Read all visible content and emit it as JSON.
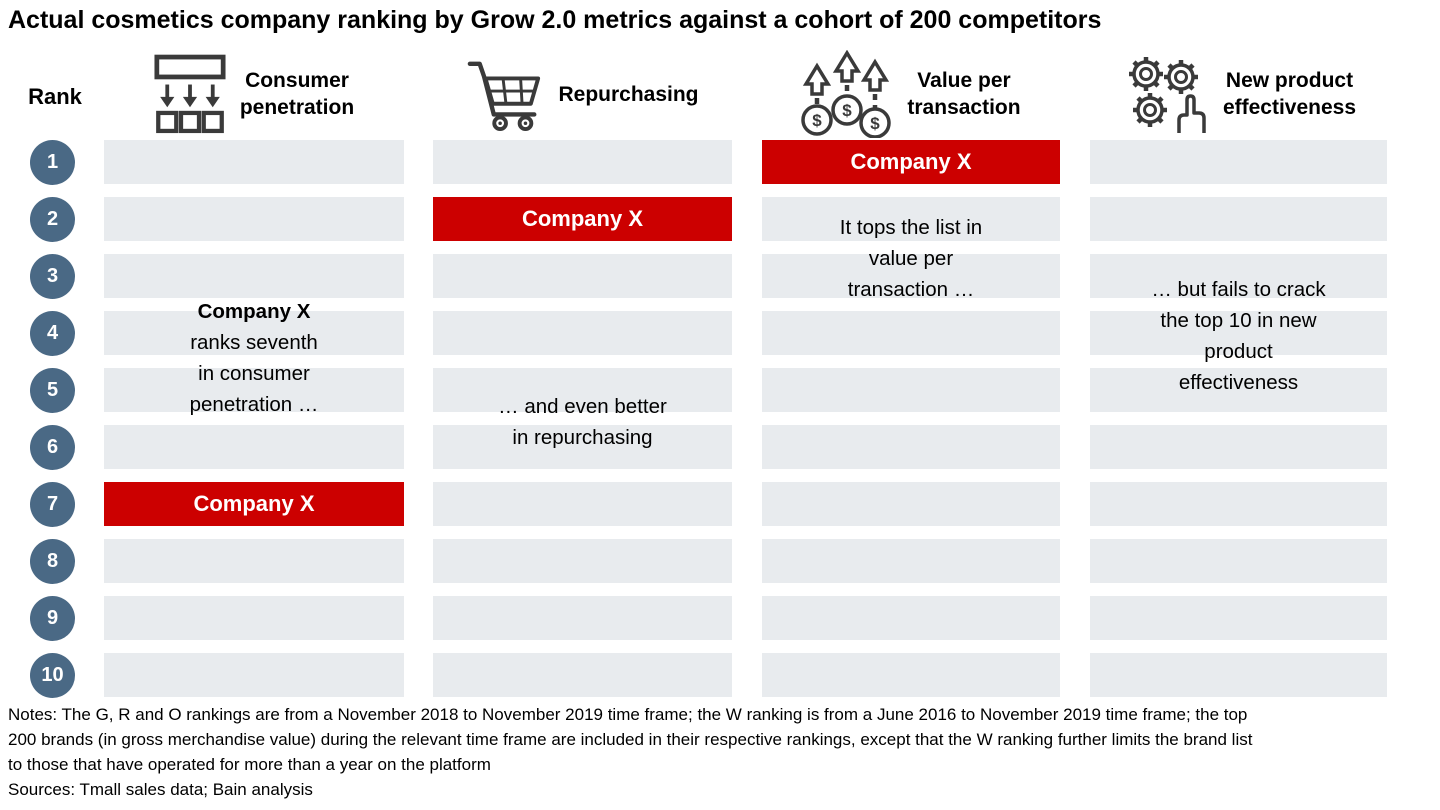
{
  "title": "Actual cosmetics company ranking by Grow 2.0 metrics against a cohort of 200 competitors",
  "rank_header": "Rank",
  "ranks": [
    1,
    2,
    3,
    4,
    5,
    6,
    7,
    8,
    9,
    10
  ],
  "highlight_label": "Company X",
  "colors": {
    "highlight": "#cc0000",
    "bar": "#e8ebee",
    "rank_circle": "#4a6985",
    "icon": "#3a3a3a"
  },
  "columns": [
    {
      "id": "consumer-penetration",
      "label": "Consumer\npenetration",
      "icon": "distribution-icon",
      "highlight_rank": 7,
      "annotation": {
        "bold": "Company X",
        "text": "ranks seventh\nin consumer\npenetration …"
      }
    },
    {
      "id": "repurchasing",
      "label": "Repurchasing",
      "icon": "cart-icon",
      "highlight_rank": 2,
      "annotation": {
        "bold": "",
        "text": "… and even better\nin repurchasing"
      }
    },
    {
      "id": "value-per-transaction",
      "label": "Value per\ntransaction",
      "icon": "rising-value-icon",
      "highlight_rank": 1,
      "annotation": {
        "bold": "",
        "text": "It tops the list in\nvalue per\ntransaction …"
      }
    },
    {
      "id": "new-product-effectiveness",
      "label": "New product\neffectiveness",
      "icon": "gears-icon",
      "highlight_rank": null,
      "annotation": {
        "bold": "",
        "text": "… but fails to crack\nthe top 10 in new\nproduct\neffectiveness"
      }
    }
  ],
  "notes": "Notes: The G, R and O rankings are from a November 2018 to November 2019 time frame; the W ranking is from a June 2016 to November 2019 time frame; the top\n200 brands (in gross merchandise value) during the relevant time frame are included in their respective rankings, except that the W ranking further limits the brand list\nto those that have operated for more than a year on the platform",
  "sources": "Sources: Tmall sales data; Bain analysis",
  "chart_data": {
    "type": "table",
    "title": "Actual cosmetics company ranking by Grow 2.0 metrics against a cohort of 200 competitors",
    "categories": [
      "Consumer penetration",
      "Repurchasing",
      "Value per transaction",
      "New product effectiveness"
    ],
    "rank_range": [
      1,
      10
    ],
    "cohort_size": 200,
    "series": [
      {
        "name": "Company X",
        "ranks": [
          7,
          2,
          1,
          null
        ],
        "rank_labels": [
          "7th in consumer penetration",
          "2nd in repurchasing",
          "1st in value per transaction",
          "not in top 10 for new product effectiveness"
        ]
      }
    ],
    "annotations": [
      "Company X ranks seventh in consumer penetration …",
      "… and even better in repurchasing",
      "It tops the list in value per transaction …",
      "… but fails to crack the top 10 in new product effectiveness"
    ],
    "legend_position": "none",
    "grid": false
  }
}
